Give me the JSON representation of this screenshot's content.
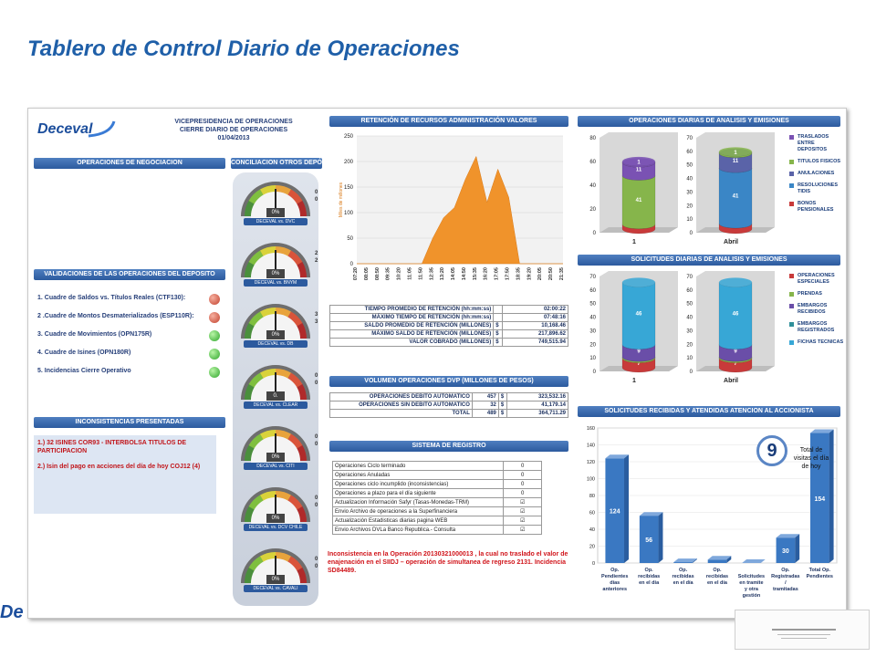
{
  "slide": {
    "title": "Tablero de Control Diario de Operaciones"
  },
  "header": {
    "logo": "Deceval",
    "line1": "VICEPRESIDENCIA DE OPERACIONES",
    "line2": "CIERRE DIARIO DE OPERACIONES",
    "date": "01/04/2013"
  },
  "sections": {
    "negociacion": "OPERACIONES DE NEGOCIACION",
    "conciliacion": "CONCILIACION OTROS DEPÓSITOS",
    "validaciones": "VALIDACIONES DE LAS OPERACIONES DEL DEPOSITO",
    "inconsistencias": "INCONSISTENCIAS PRESENTADAS",
    "retencion": "RETENCIÓN DE RECURSOS ADMINISTRACIÓN VALORES",
    "dvp": "VOLUMEN OPERACIONES DVP  (MILLONES DE PESOS)",
    "registro": "SISTEMA DE REGISTRO",
    "op_diarias": "OPERACIONES DIARIAS DE ANALISIS Y EMISIONES",
    "solicitudes": "SOLICITUDES DIARIAS DE ANALISIS Y EMISIONES",
    "accionista": "SOLICITUDES RECIBIDAS Y ATENDIDAS ATENCION AL ACCIONISTA"
  },
  "validaciones": [
    {
      "label": "1. Cuadre de Saldos vs. Títulos Reales (CTF130):",
      "status": "red"
    },
    {
      "label": "2 .Cuadre de Montos Desmaterializados (ESP110R):",
      "status": "red"
    },
    {
      "label": "3. Cuadre de Movimientos (OPN175R)",
      "status": "green"
    },
    {
      "label": "4.  Cuadre de Isines (OPN180R)",
      "status": "green"
    },
    {
      "label": "5.  Incidencias Cierre Operativo",
      "status": "green"
    }
  ],
  "inconsistencias": [
    "1.)  32 ISINES COR93 - INTERBOLSA TITULOS DE PARTICIPACION",
    "2.)  Isin del pago en acciones del día de hoy COJ12 (4)"
  ],
  "gauges": [
    {
      "label": "DECEVAL vs. DVC",
      "value": "0%",
      "side": [
        "0",
        "0"
      ]
    },
    {
      "label": "DECEVAL vs. BNYM",
      "value": "0%",
      "side": [
        "2",
        "2"
      ]
    },
    {
      "label": "DECEVAL vs. DB",
      "value": "0%",
      "side": [
        "3",
        "3"
      ]
    },
    {
      "label": "DECEVAL vs. CLEAR",
      "value": "0.",
      "side": [
        "0",
        "0"
      ]
    },
    {
      "label": "DECEVAL vs. CITI",
      "value": "0%",
      "side": [
        "0",
        "0"
      ]
    },
    {
      "label": "DECEVAL vs. DCV CHILE",
      "value": "0%",
      "side": [
        "0",
        "0"
      ]
    },
    {
      "label": "DECEVAL vs. CAVALI",
      "value": "0%",
      "side": [
        "0",
        "0"
      ]
    }
  ],
  "retencion_table": [
    {
      "label": "TIEMPO PROMEDIO DE RETENCIÓN (hh:mm:ss)",
      "cur": "",
      "value": "02:00:22"
    },
    {
      "label": "MÁXIMO TIEMPO DE RETENCIÓN (hh:mm:ss)",
      "cur": "",
      "value": "07:48:16"
    },
    {
      "label": "SALDO PROMEDIO DE RETENCIÓN (MILLONES)",
      "cur": "$",
      "value": "10,168.46"
    },
    {
      "label": "MÁXIMO SALDO DE RETENCIÓN (MILLONES)",
      "cur": "$",
      "value": "217,896.62"
    },
    {
      "label": "VALOR COBRADO (MILLONES)",
      "cur": "$",
      "value": "749,515.94"
    }
  ],
  "dvp_table": [
    {
      "label": "OPERACIONES DEBITO AUTOMATICO",
      "count": "457",
      "cur": "$",
      "value": "323,532.16"
    },
    {
      "label": "OPERACIONES SIN DEBITO AUTOMATICO",
      "count": "32",
      "cur": "$",
      "value": "41,179.14"
    },
    {
      "label": "TOTAL",
      "count": "489",
      "cur": "$",
      "value": "364,711.29"
    }
  ],
  "registro_table": [
    {
      "label": "Operaciones Ciclo terminado",
      "value": "0"
    },
    {
      "label": "Operaciones Anuladas",
      "value": "0"
    },
    {
      "label": "Operaciones ciclo incumplido (inconsistencias)",
      "value": "0"
    },
    {
      "label": "Operaciones a plazo para el día siguiente",
      "value": "0"
    },
    {
      "label": "Actualizacion Información Safyr (Tasas-Monedas-TRM)",
      "value": "☑"
    },
    {
      "label": "Envio Archivo de operaciones a la Superfinanciera",
      "value": "☑"
    },
    {
      "label": "Actualización Estadisticas diarias pagina WEB",
      "value": "☑"
    },
    {
      "label": "Envio Archivos DVLa Banco Republica.- Consulta",
      "value": "☑"
    }
  ],
  "red_note": "Inconsistencia en la Operación  20130321000013 , la cual no traslado el valor de enajenación en el SIIDJ  – operación de simultanea de regreso 2131. Incidencia SD84489.",
  "accionista": {
    "visits_count": "9",
    "visits_label": "Total de visitas el día de hoy"
  },
  "colors": {
    "accent": "#1f5fa8",
    "header_bar": "#2c5a9e",
    "area": "#f0932b",
    "red": "#c2402c",
    "green": "#2ea52a"
  },
  "chart_data": [
    {
      "type": "area",
      "title": "RETENCIÓN DE RECURSOS ADMINISTRACIÓN VALORES",
      "ylabel": "Miles de millones",
      "ylim": [
        0,
        250
      ],
      "yticks": [
        0,
        50,
        100,
        150,
        200,
        250
      ],
      "x": [
        "07:20",
        "08:05",
        "08:50",
        "09:35",
        "10:20",
        "11:05",
        "11:50",
        "12:35",
        "13:20",
        "14:05",
        "14:50",
        "15:35",
        "16:20",
        "17:05",
        "17:50",
        "18:35",
        "19:20",
        "20:05",
        "20:50",
        "21:35"
      ],
      "values": [
        0,
        0,
        0,
        0,
        0,
        0,
        0,
        50,
        90,
        110,
        165,
        210,
        120,
        185,
        130,
        0,
        0,
        0,
        0,
        0
      ]
    },
    {
      "type": "bar",
      "title": "OPERACIONES DIARIAS DE ANALISIS Y EMISIONES",
      "charts": [
        {
          "category": "1",
          "ylim": [
            0,
            80
          ],
          "yticks": [
            0,
            20,
            40,
            60,
            80
          ],
          "stack": [
            {
              "name": "BONOS PENSIONALES",
              "value": 4
            },
            {
              "name": "RESOLUCIONES TIDIS",
              "value": 0
            },
            {
              "name": "ANULACIONES",
              "value": 0
            },
            {
              "name": "TITULOS FISICOS",
              "value": 41
            },
            {
              "name": "TRASLADOS ENTRE DEPOSITOS",
              "value": 11
            },
            {
              "name": "TRASLADOS ENTRE DEPOSITOS",
              "value": 1
            }
          ]
        },
        {
          "category": "Abril",
          "ylim": [
            0,
            70
          ],
          "yticks": [
            0,
            10,
            20,
            30,
            40,
            50,
            60,
            70
          ],
          "stack": [
            {
              "name": "BONOS PENSIONALES",
              "value": 4
            },
            {
              "name": "RESOLUCIONES TIDIS",
              "value": 41
            },
            {
              "name": "ANULACIONES",
              "value": 11
            },
            {
              "name": "TITULOS FISICOS",
              "value": 1
            }
          ]
        }
      ],
      "legend": [
        "TRASLADOS ENTRE DEPOSITOS",
        "TITULOS FISICOS",
        "ANULACIONES",
        "RESOLUCIONES TIDIS",
        "BONOS PENSIONALES"
      ]
    },
    {
      "type": "bar",
      "title": "SOLICITUDES DIARIAS DE ANALISIS Y EMISIONES",
      "charts": [
        {
          "category": "1",
          "ylim": [
            0,
            70
          ],
          "yticks": [
            0,
            10,
            20,
            30,
            40,
            50,
            60,
            70
          ],
          "stack": [
            {
              "name": "OPERACIONES ESPECIALES",
              "value": 7
            },
            {
              "name": "PRENDAS",
              "value": 1
            },
            {
              "name": "EMBARGOS RECIBIDOS",
              "value": 9
            },
            {
              "name": "FICHAS TECNICAS",
              "value": 46
            }
          ]
        },
        {
          "category": "Abril",
          "ylim": [
            0,
            70
          ],
          "yticks": [
            0,
            10,
            20,
            30,
            40,
            50,
            60,
            70
          ],
          "stack": [
            {
              "name": "OPERACIONES ESPECIALES",
              "value": 7
            },
            {
              "name": "PRENDAS",
              "value": 1
            },
            {
              "name": "EMBARGOS RECIBIDOS",
              "value": 9
            },
            {
              "name": "FICHAS TECNICAS",
              "value": 46
            }
          ]
        }
      ],
      "legend": [
        "OPERACIONES ESPECIALES",
        "PRENDAS",
        "EMBARGOS RECIBIDOS",
        "EMBARGOS REGISTRADOS",
        "FICHAS TECNICAS"
      ]
    },
    {
      "type": "bar",
      "title": "SOLICITUDES RECIBIDAS Y ATENDIDAS ATENCION AL ACCIONISTA",
      "ylim": [
        0,
        160
      ],
      "yticks": [
        0,
        20,
        40,
        60,
        80,
        100,
        120,
        140,
        160
      ],
      "categories": [
        "Op. Pendientes días anteriores",
        "Op. recibidas en el día",
        "Op. recibidas en el día",
        "Op. recibidas en el día",
        "Solicitudes en tramite y otra gestión",
        "Op. Registradas / tramitadas",
        "Total Op. Pendientes"
      ],
      "values": [
        124,
        56,
        1,
        4,
        0,
        30,
        154
      ]
    }
  ]
}
